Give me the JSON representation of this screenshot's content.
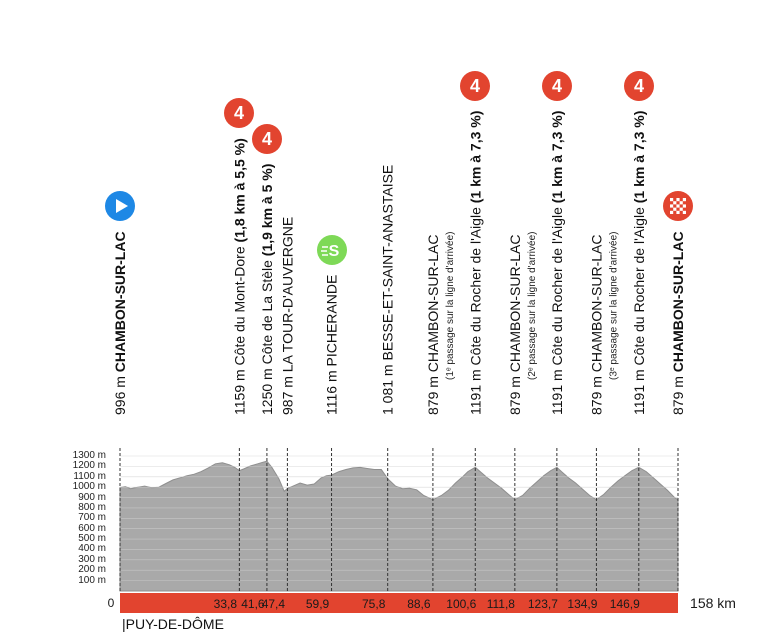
{
  "chart_data": {
    "type": "area",
    "title": "",
    "xlabel": "",
    "ylabel": "",
    "x_unit": "km",
    "x_total": 158,
    "x_total_label": "158 km",
    "x_zero_label": "0",
    "y_ticks": [
      "100 m",
      "200 m",
      "300 m",
      "400 m",
      "500 m",
      "600 m",
      "700 m",
      "800 m",
      "900 m",
      "1000 m",
      "1100 m",
      "1200 m",
      "1300 m"
    ],
    "ylim": [
      0,
      1300
    ],
    "grid": true,
    "fill_color": "#a9a9a9",
    "bar_color": "#e2442f",
    "climb_badge_color": "#e2442f",
    "sprint_color": "#7ed957",
    "start_color": "#1e88e5",
    "bottom_label": "|PUY-DE-DÔME",
    "km_labels": [
      {
        "km": 33.8,
        "text": "33,8"
      },
      {
        "km": 41.6,
        "text": "41,6"
      },
      {
        "km": 47.4,
        "text": "47,4"
      },
      {
        "km": 59.9,
        "text": "59,9"
      },
      {
        "km": 75.8,
        "text": "75,8"
      },
      {
        "km": 88.6,
        "text": "88,6"
      },
      {
        "km": 100.6,
        "text": "100,6"
      },
      {
        "km": 111.8,
        "text": "111,8"
      },
      {
        "km": 123.7,
        "text": "123,7"
      },
      {
        "km": 134.9,
        "text": "134,9"
      },
      {
        "km": 146.9,
        "text": "146,9"
      }
    ],
    "profile": [
      [
        0,
        996
      ],
      [
        1.5,
        1005
      ],
      [
        3,
        985
      ],
      [
        5,
        1000
      ],
      [
        7,
        1010
      ],
      [
        9,
        995
      ],
      [
        11,
        1000
      ],
      [
        13,
        1035
      ],
      [
        15,
        1070
      ],
      [
        17,
        1090
      ],
      [
        19,
        1110
      ],
      [
        21,
        1125
      ],
      [
        23,
        1150
      ],
      [
        25,
        1185
      ],
      [
        27,
        1225
      ],
      [
        29,
        1235
      ],
      [
        31,
        1215
      ],
      [
        32.5,
        1190
      ],
      [
        33.8,
        1159
      ],
      [
        35,
        1175
      ],
      [
        37,
        1205
      ],
      [
        39,
        1225
      ],
      [
        40.5,
        1240
      ],
      [
        41.6,
        1250
      ],
      [
        43,
        1190
      ],
      [
        45,
        1080
      ],
      [
        46.5,
        960
      ],
      [
        47.4,
        987
      ],
      [
        49,
        1010
      ],
      [
        51,
        1040
      ],
      [
        53,
        1020
      ],
      [
        55,
        1030
      ],
      [
        57,
        1090
      ],
      [
        58.5,
        1110
      ],
      [
        59.9,
        1116
      ],
      [
        62,
        1150
      ],
      [
        64,
        1170
      ],
      [
        66,
        1185
      ],
      [
        68,
        1190
      ],
      [
        70,
        1180
      ],
      [
        72,
        1170
      ],
      [
        74,
        1170
      ],
      [
        75.8,
        1081
      ],
      [
        78,
        1010
      ],
      [
        80,
        985
      ],
      [
        82,
        990
      ],
      [
        84,
        975
      ],
      [
        86,
        920
      ],
      [
        88.6,
        879
      ],
      [
        91,
        920
      ],
      [
        93,
        970
      ],
      [
        95,
        1040
      ],
      [
        97,
        1100
      ],
      [
        98.5,
        1150
      ],
      [
        100.6,
        1191
      ],
      [
        102,
        1150
      ],
      [
        104,
        1090
      ],
      [
        106,
        1040
      ],
      [
        108,
        990
      ],
      [
        110,
        930
      ],
      [
        111.8,
        879
      ],
      [
        114,
        920
      ],
      [
        116,
        990
      ],
      [
        118,
        1050
      ],
      [
        120,
        1110
      ],
      [
        122,
        1160
      ],
      [
        123.7,
        1191
      ],
      [
        125,
        1150
      ],
      [
        127,
        1090
      ],
      [
        129,
        1040
      ],
      [
        131,
        980
      ],
      [
        133,
        920
      ],
      [
        134.9,
        879
      ],
      [
        137,
        930
      ],
      [
        139,
        1000
      ],
      [
        141,
        1060
      ],
      [
        143,
        1110
      ],
      [
        145,
        1160
      ],
      [
        146.9,
        1191
      ],
      [
        149,
        1150
      ],
      [
        151,
        1090
      ],
      [
        153,
        1030
      ],
      [
        155,
        970
      ],
      [
        157,
        900
      ],
      [
        158,
        879
      ]
    ],
    "points": [
      {
        "km": 0,
        "alt": "996 m",
        "name": "CHAMBON-SUR-LAC",
        "bold": true,
        "note": "",
        "detail": "",
        "marker": "start"
      },
      {
        "km": 33.8,
        "alt": "1159 m",
        "name": "Côte du Mont-Dore",
        "bold": false,
        "note": "",
        "detail": "(1,8 km à 5,5 %)",
        "marker": "climb",
        "badge": "4"
      },
      {
        "km": 41.6,
        "alt": "1250 m",
        "name": "Côte de La Stèle",
        "bold": false,
        "note": "",
        "detail": "(1,9 km à 5 %)",
        "marker": "climb",
        "badge": "4"
      },
      {
        "km": 47.4,
        "alt": "987 m",
        "name": "LA TOUR-D'AUVERGNE",
        "bold": false,
        "note": "",
        "detail": "",
        "marker": ""
      },
      {
        "km": 59.9,
        "alt": "1116 m",
        "name": "PICHERANDE",
        "bold": false,
        "note": "",
        "detail": "",
        "marker": "sprint",
        "badge": "S"
      },
      {
        "km": 75.8,
        "alt": "1 081 m",
        "name": "BESSE-ET-SAINT-ANASTAISE",
        "bold": false,
        "note": "",
        "detail": "",
        "marker": ""
      },
      {
        "km": 88.6,
        "alt": "879 m",
        "name": "CHAMBON-SUR-LAC",
        "bold": false,
        "note": "(1ᵉ passage sur la ligne d'arrivée)",
        "detail": "",
        "marker": ""
      },
      {
        "km": 100.6,
        "alt": "1191 m",
        "name": "Côte du Rocher de l'Aigle",
        "bold": false,
        "note": "",
        "detail": "(1 km à 7,3 %)",
        "marker": "climb",
        "badge": "4"
      },
      {
        "km": 111.8,
        "alt": "879 m",
        "name": "CHAMBON-SUR-LAC",
        "bold": false,
        "note": "(2ᵉ passage sur la ligne d'arrivée)",
        "detail": "",
        "marker": ""
      },
      {
        "km": 123.7,
        "alt": "1191 m",
        "name": "Côte du Rocher de l'Aigle",
        "bold": false,
        "note": "",
        "detail": "(1 km à 7,3 %)",
        "marker": "climb",
        "badge": "4"
      },
      {
        "km": 134.9,
        "alt": "879 m",
        "name": "CHAMBON-SUR-LAC",
        "bold": false,
        "note": "(3ᵉ passage sur la ligne d'arrivée)",
        "detail": "",
        "marker": ""
      },
      {
        "km": 146.9,
        "alt": "1191 m",
        "name": "Côte du Rocher de l'Aigle",
        "bold": false,
        "note": "",
        "detail": "(1 km à 7,3 %)",
        "marker": "climb",
        "badge": "4"
      },
      {
        "km": 158,
        "alt": "879 m",
        "name": "CHAMBON-SUR-LAC",
        "bold": true,
        "note": "",
        "detail": "",
        "marker": "finish"
      }
    ]
  }
}
